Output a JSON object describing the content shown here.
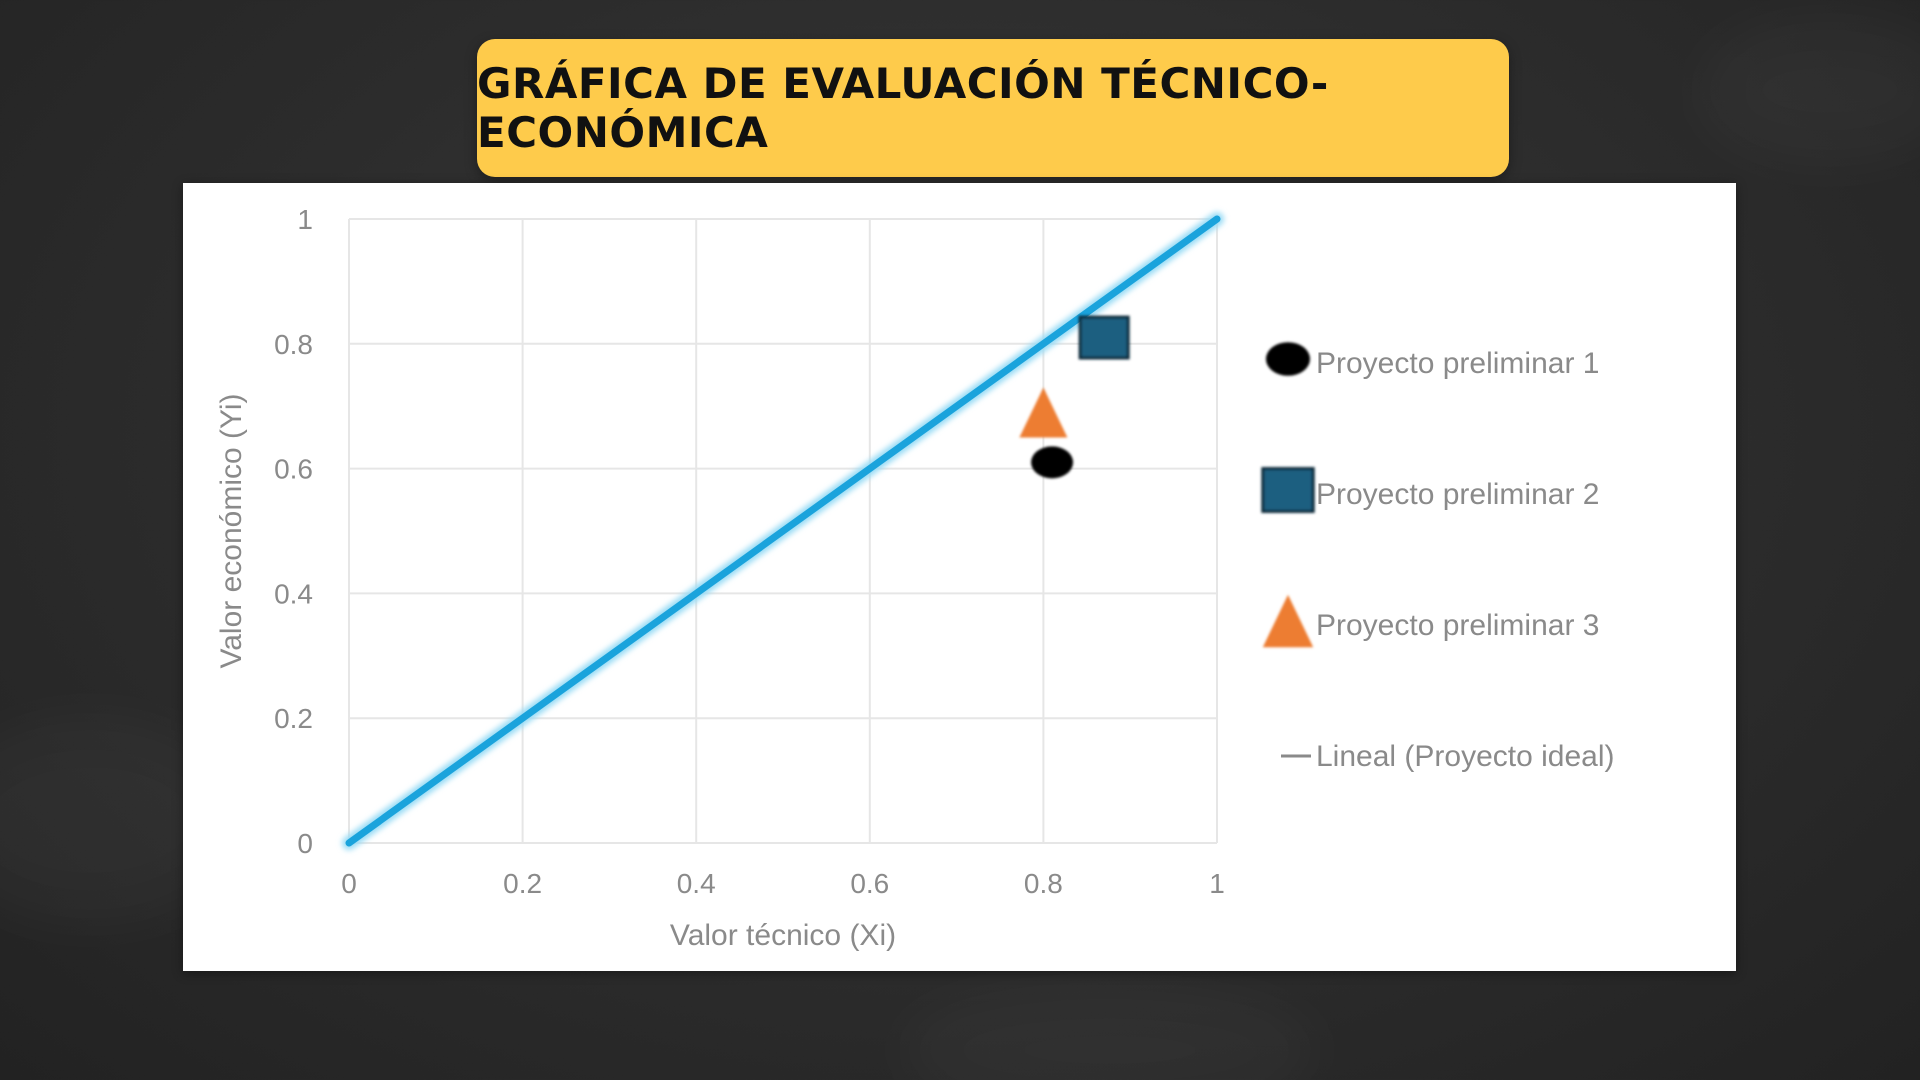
{
  "title": "GRÁFICA DE EVALUACIÓN TÉCNICO-ECONÓMICA",
  "colors": {
    "banner": "#fecb4b",
    "ideal_line": "#1aa3dc",
    "p1": "#000000",
    "p2": "#1f5f80",
    "p3": "#ed7d31"
  },
  "chart_data": {
    "type": "scatter",
    "xlabel": "Valor técnico (Xi)",
    "ylabel": "Valor económico (Yi)",
    "xlim": [
      0,
      1
    ],
    "ylim": [
      0,
      1
    ],
    "x_ticks": [
      "0",
      "0.2",
      "0.4",
      "0.6",
      "0.8",
      "1"
    ],
    "y_ticks": [
      "0",
      "0.2",
      "0.4",
      "0.6",
      "0.8",
      "1"
    ],
    "grid": true,
    "legend_position": "right",
    "series": [
      {
        "name": "Proyecto preliminar 1",
        "marker": "circle",
        "points": [
          {
            "x": 0.81,
            "y": 0.61
          }
        ]
      },
      {
        "name": "Proyecto preliminar 2",
        "marker": "square",
        "points": [
          {
            "x": 0.87,
            "y": 0.81
          }
        ]
      },
      {
        "name": "Proyecto preliminar 3",
        "marker": "triangle",
        "points": [
          {
            "x": 0.8,
            "y": 0.69
          }
        ]
      }
    ],
    "line": {
      "name": "Lineal (Proyecto ideal)",
      "points": [
        {
          "x": 0,
          "y": 0
        },
        {
          "x": 1,
          "y": 1
        }
      ]
    }
  }
}
